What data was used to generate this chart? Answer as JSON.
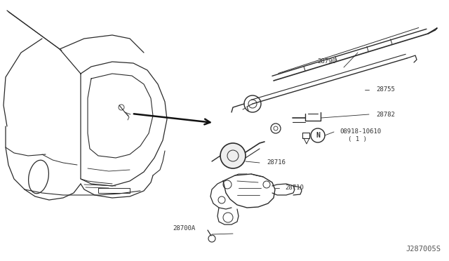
{
  "bg_color": "#ffffff",
  "fig_width": 6.4,
  "fig_height": 3.72,
  "dpi": 100,
  "diagram_code": "J287005S",
  "line_color": "#2a2a2a",
  "text_color": "#333333",
  "label_fontsize": 6.5,
  "code_fontsize": 7.5
}
